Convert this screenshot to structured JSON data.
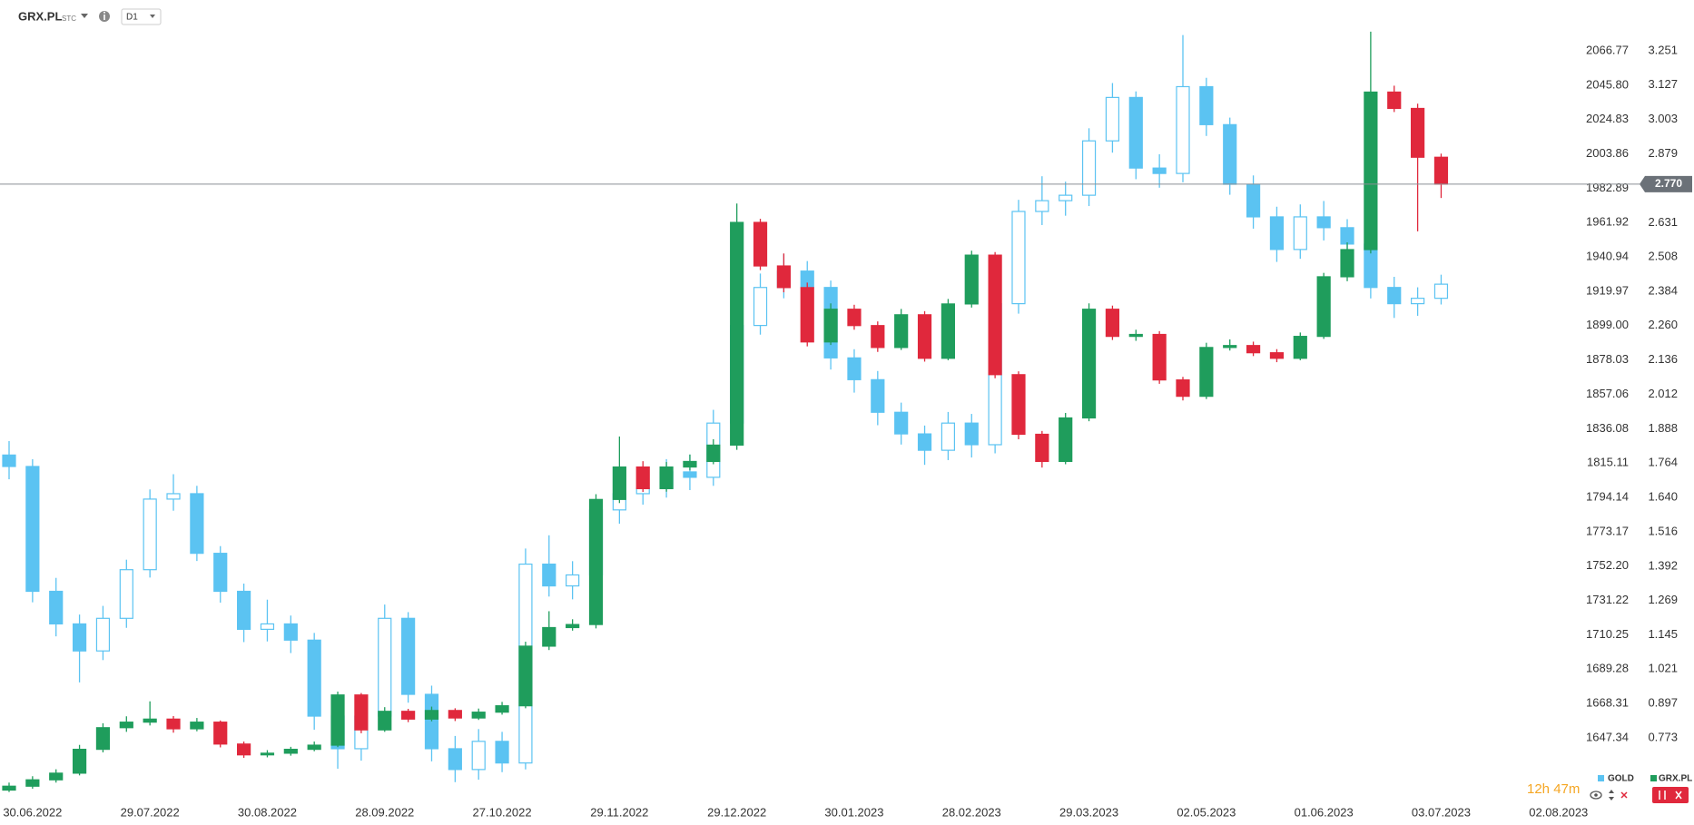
{
  "header": {
    "symbol": "GRX.PL",
    "exchange": "STC",
    "interval": "D1"
  },
  "countdown": "12h 47m",
  "chart_data": {
    "type": "candlestick",
    "categories": [
      null,
      "30.06.2022",
      null,
      null,
      null,
      null,
      "29.07.2022",
      null,
      null,
      null,
      null,
      "30.08.2022",
      null,
      null,
      null,
      null,
      "28.09.2022",
      null,
      null,
      null,
      null,
      "27.10.2022",
      null,
      null,
      null,
      null,
      "29.11.2022",
      null,
      null,
      null,
      null,
      "29.12.2022",
      null,
      null,
      null,
      null,
      "30.01.2023",
      null,
      null,
      null,
      null,
      "28.02.2023",
      null,
      null,
      null,
      null,
      "29.03.2023",
      null,
      null,
      null,
      null,
      "02.05.2023",
      null,
      null,
      null,
      null,
      "01.06.2023",
      null,
      null,
      null,
      null,
      "03.07.2023",
      null,
      null,
      null,
      null,
      "02.08.2023"
    ],
    "series": [
      {
        "name": "GOLD",
        "axis": "y",
        "color": "#5bc3f2",
        "hollow_up": true,
        "open": [
          1820.0,
          1813.0,
          1736.8,
          1716.9,
          1700.4,
          1720.3,
          1750.0,
          1793.1,
          1796.4,
          1760.0,
          1736.8,
          1713.6,
          1716.9,
          1707.0,
          1660.6,
          1640.7,
          1660.6,
          1720.3,
          1673.9,
          1640.7,
          1628.0,
          1645.2,
          1632.0,
          1753.4,
          1740.1,
          1746.8,
          1786.5,
          1796.4,
          1799.8,
          1809.7,
          1806.4,
          1839.5,
          1899.1,
          1922.3,
          1932.3,
          1922.3,
          1879.3,
          1866.0,
          1846.1,
          1832.9,
          1822.9,
          1839.5,
          1826.3,
          1912.4,
          1968.7,
          1975.3,
          1978.6,
          2011.8,
          2038.3,
          1995.2,
          1991.9,
          2044.9,
          2021.7,
          1985.3,
          1965.4,
          1945.5,
          1965.4,
          1958.8,
          1948.8,
          1922.3,
          1912.4,
          1915.7,
          null,
          null,
          null,
          null,
          null
        ],
        "high": [
          1828.5,
          1817.4,
          1745.0,
          1722.6,
          1727.9,
          1756.1,
          1799.0,
          1808.3,
          1801.2,
          1764.4,
          1741.5,
          1731.7,
          1722.0,
          1711.4,
          1668.0,
          1667.2,
          1728.7,
          1724.1,
          1679.2,
          1648.5,
          1652.7,
          1651.0,
          1762.9,
          1771.0,
          1755.2,
          1793.0,
          1806.8,
          1810.2,
          1817.5,
          1820.3,
          1847.6,
          1905.4,
          1930.8,
          1942.9,
          1938.4,
          1926.5,
          1884.6,
          1871.3,
          1852.0,
          1838.0,
          1846.3,
          1845.1,
          1918.2,
          1975.8,
          1990.2,
          1986.9,
          2019.5,
          2047.1,
          2042.0,
          2003.6,
          2076.4,
          2050.3,
          2026.0,
          1990.7,
          1971.6,
          1973.0,
          1975.1,
          1964.0,
          1954.5,
          1928.8,
          1922.4,
          1930.1,
          null,
          null,
          null,
          null,
          null
        ],
        "low": [
          1805.2,
          1730.1,
          1709.3,
          1681.2,
          1694.8,
          1714.5,
          1745.2,
          1786.0,
          1755.3,
          1729.9,
          1705.8,
          1706.2,
          1699.1,
          1652.3,
          1628.5,
          1633.4,
          1655.0,
          1668.8,
          1633.0,
          1620.3,
          1621.8,
          1626.4,
          1628.1,
          1733.6,
          1731.9,
          1741.2,
          1778.1,
          1789.7,
          1794.0,
          1798.6,
          1801.2,
          1834.0,
          1893.5,
          1915.7,
          1914.0,
          1872.2,
          1858.1,
          1838.2,
          1826.4,
          1814.0,
          1816.9,
          1818.5,
          1821.0,
          1906.3,
          1960.4,
          1966.1,
          1972.0,
          2004.6,
          1988.4,
          1983.2,
          1986.5,
          2014.8,
          1978.9,
          1958.2,
          1937.9,
          1939.8,
          1951.0,
          1940.2,
          1915.6,
          1903.7,
          1905.0,
          1911.9,
          null,
          null,
          null,
          null,
          null
        ],
        "close": [
          1813.0,
          1736.8,
          1716.9,
          1700.4,
          1720.3,
          1750.0,
          1793.1,
          1796.4,
          1760.0,
          1736.8,
          1713.6,
          1716.9,
          1707.0,
          1660.6,
          1640.7,
          1660.6,
          1720.3,
          1673.9,
          1640.7,
          1628.0,
          1645.2,
          1632.0,
          1753.4,
          1740.1,
          1746.8,
          1786.5,
          1796.4,
          1799.8,
          1809.7,
          1806.4,
          1839.5,
          1899.1,
          1922.3,
          1932.3,
          1922.3,
          1879.3,
          1866.0,
          1846.1,
          1832.9,
          1822.9,
          1839.5,
          1826.3,
          1912.4,
          1968.7,
          1975.3,
          1978.6,
          2011.8,
          2038.3,
          1995.2,
          1991.9,
          2044.9,
          2021.7,
          1985.3,
          1965.4,
          1945.5,
          1965.4,
          1958.8,
          1948.8,
          1922.3,
          1912.4,
          1915.7,
          1924.3,
          null,
          null,
          null,
          null,
          null
        ]
      },
      {
        "name": "GRX.PL",
        "axis": "y2",
        "up_color": "#1f9d5c",
        "down_color": "#e0283c",
        "hollow_up": false,
        "open": [
          0.585,
          0.599,
          0.622,
          0.646,
          0.732,
          0.81,
          0.83,
          0.841,
          0.806,
          0.83,
          0.751,
          0.712,
          0.718,
          0.732,
          0.747,
          0.928,
          0.802,
          0.869,
          0.841,
          0.872,
          0.845,
          0.866,
          0.889,
          1.104,
          1.171,
          1.182,
          1.633,
          1.75,
          1.672,
          1.75,
          1.77,
          1.829,
          2.632,
          2.475,
          2.397,
          2.201,
          2.319,
          2.26,
          2.181,
          2.299,
          2.142,
          2.338,
          2.514,
          2.083,
          1.868,
          1.77,
          1.927,
          2.319,
          2.221,
          2.228,
          2.064,
          2.005,
          2.181,
          2.188,
          2.162,
          2.142,
          2.221,
          2.436,
          2.534,
          3.102,
          3.043,
          2.867,
          null,
          null,
          null,
          null,
          null
        ],
        "high": [
          0.612,
          0.635,
          0.66,
          0.748,
          0.826,
          0.851,
          0.905,
          0.852,
          0.845,
          0.836,
          0.76,
          0.729,
          0.741,
          0.76,
          0.94,
          0.935,
          0.884,
          0.878,
          0.886,
          0.88,
          0.879,
          0.903,
          1.12,
          1.23,
          1.201,
          1.652,
          1.86,
          1.771,
          1.768,
          1.795,
          1.85,
          2.7,
          2.645,
          2.52,
          2.415,
          2.34,
          2.335,
          2.275,
          2.32,
          2.312,
          2.356,
          2.53,
          2.525,
          2.095,
          1.88,
          1.945,
          2.34,
          2.332,
          2.245,
          2.24,
          2.075,
          2.198,
          2.21,
          2.202,
          2.175,
          2.235,
          2.45,
          2.56,
          3.32,
          3.125,
          3.06,
          2.88,
          null,
          null,
          null,
          null,
          null
        ],
        "low": [
          0.578,
          0.59,
          0.612,
          0.638,
          0.721,
          0.795,
          0.818,
          0.792,
          0.797,
          0.739,
          0.701,
          0.703,
          0.709,
          0.725,
          0.74,
          0.79,
          0.795,
          0.83,
          0.833,
          0.834,
          0.838,
          0.857,
          0.88,
          1.09,
          1.16,
          1.168,
          1.62,
          1.66,
          1.661,
          1.738,
          1.76,
          1.812,
          2.46,
          2.38,
          2.185,
          2.19,
          2.245,
          2.165,
          2.172,
          2.13,
          2.135,
          2.325,
          2.07,
          1.85,
          1.748,
          1.76,
          1.915,
          2.208,
          2.205,
          2.05,
          1.99,
          1.995,
          2.17,
          2.15,
          2.128,
          2.135,
          2.212,
          2.42,
          2.52,
          3.03,
          2.6,
          2.72,
          null,
          null,
          null,
          null,
          null
        ],
        "close": [
          0.599,
          0.622,
          0.646,
          0.732,
          0.81,
          0.83,
          0.841,
          0.806,
          0.83,
          0.751,
          0.712,
          0.718,
          0.732,
          0.747,
          0.928,
          0.802,
          0.869,
          0.841,
          0.872,
          0.845,
          0.866,
          0.889,
          1.104,
          1.171,
          1.182,
          1.633,
          1.75,
          1.672,
          1.75,
          1.77,
          1.829,
          2.632,
          2.475,
          2.397,
          2.201,
          2.319,
          2.26,
          2.181,
          2.299,
          2.142,
          2.338,
          2.514,
          2.083,
          1.868,
          1.77,
          1.927,
          2.319,
          2.221,
          2.228,
          2.064,
          2.005,
          2.181,
          2.188,
          2.162,
          2.142,
          2.221,
          2.436,
          2.534,
          3.102,
          3.043,
          2.867,
          2.77,
          null,
          null,
          null,
          null,
          null
        ]
      }
    ],
    "ylim": [
      1610.2,
      2097.8
    ],
    "yticks": [
      1647.34,
      1668.31,
      1689.28,
      1710.25,
      1731.22,
      {
        "value": 1752.2,
        "label": "1752.20"
      },
      1773.17,
      1794.14,
      1815.11,
      1836.08,
      1857.06,
      1878.03,
      {
        "value": 1899,
        "label": "1899.00"
      },
      1919.97,
      1940.94,
      1961.92,
      1982.89,
      2003.86,
      2024.83,
      {
        "value": 2045.8,
        "label": "2045.80"
      },
      2066.77
    ],
    "y2lim": [
      0.554,
      3.434
    ],
    "y2ticks": [
      0.773,
      0.897,
      1.021,
      1.145,
      1.269,
      1.392,
      1.516,
      {
        "value": 1.64,
        "label": "1.640"
      },
      1.764,
      1.888,
      2.012,
      2.136,
      {
        "value": 2.26,
        "label": "2.260"
      },
      2.384,
      2.508,
      2.631,
      2.879,
      3.003,
      3.127,
      3.251
    ],
    "current_price": {
      "value": 2.77,
      "label": "2.770"
    },
    "grid": false
  }
}
